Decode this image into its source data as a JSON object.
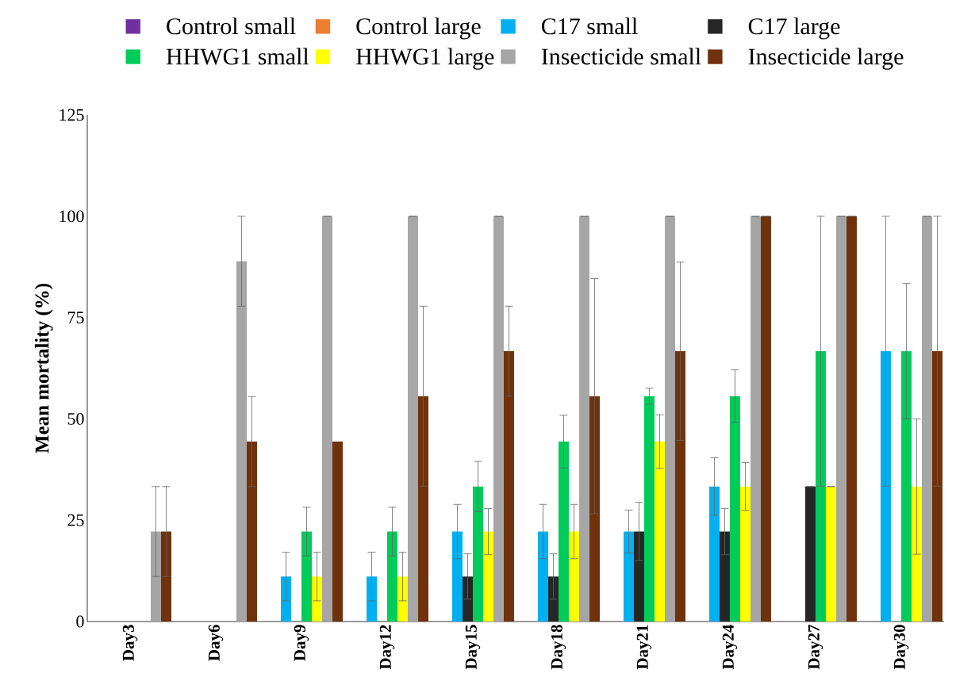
{
  "chart_data": {
    "type": "bar",
    "ylabel": "Mean mortality (%)",
    "ylim": [
      0,
      125
    ],
    "yticks": [
      0,
      25,
      50,
      75,
      100,
      125
    ],
    "legend": "top",
    "categories": [
      "Day3",
      "Day6",
      "Day9",
      "Day12",
      "Day15",
      "Day18",
      "Day21",
      "Day24",
      "Day27",
      "Day30"
    ],
    "series": [
      {
        "name": "Control small",
        "color": "#7030a0",
        "values": [
          0,
          0,
          0,
          0,
          0,
          0,
          0,
          0,
          0,
          0
        ]
      },
      {
        "name": "Control large",
        "color": "#ed7d31",
        "values": [
          0,
          0,
          0,
          0,
          0,
          0,
          0,
          0,
          0,
          0
        ]
      },
      {
        "name": "C17 small",
        "color": "#00b0f0",
        "values": [
          0,
          0,
          11.1,
          11.1,
          22.2,
          22.2,
          22.2,
          33.3,
          0,
          66.7
        ],
        "errors": [
          null,
          null,
          6,
          6,
          6.7,
          6.7,
          5.3,
          7.1,
          null,
          33.3
        ]
      },
      {
        "name": "C17 large",
        "color": "#262626",
        "values": [
          0,
          0,
          0,
          0,
          11.1,
          11.1,
          22.2,
          22.2,
          33.3,
          0
        ],
        "errors": [
          null,
          null,
          null,
          null,
          5.6,
          5.6,
          7.2,
          5.7,
          0,
          null
        ]
      },
      {
        "name": "HHWG1 small",
        "color": "#00cc5a",
        "values": [
          0,
          0,
          22.2,
          22.2,
          33.3,
          44.4,
          55.6,
          55.6,
          66.7,
          66.7
        ],
        "errors": [
          null,
          null,
          6,
          6,
          6.2,
          6.5,
          2,
          6.5,
          33.3,
          16.7
        ]
      },
      {
        "name": "HHWG1 large",
        "color": "#ffff00",
        "values": [
          0,
          0,
          11.1,
          11.1,
          22.2,
          22.2,
          44.4,
          33.3,
          33.3,
          33.3
        ],
        "errors": [
          null,
          null,
          6,
          6,
          5.7,
          6.7,
          6.6,
          5.9,
          0,
          16.7
        ]
      },
      {
        "name": "Insecticide small",
        "color": "#a6a6a6",
        "values": [
          22.2,
          88.9,
          100,
          100,
          100,
          100,
          100,
          100,
          100,
          100
        ],
        "errors": [
          11.1,
          11.1,
          0,
          0,
          0,
          0,
          0,
          0,
          0,
          0
        ]
      },
      {
        "name": "Insecticide large",
        "color": "#70320c",
        "values": [
          22.2,
          44.4,
          44.4,
          55.6,
          66.7,
          55.6,
          66.7,
          100,
          100,
          66.7
        ],
        "errors": [
          11.1,
          11.1,
          null,
          22.2,
          11.1,
          29,
          22,
          0,
          0,
          33.3
        ]
      }
    ]
  }
}
